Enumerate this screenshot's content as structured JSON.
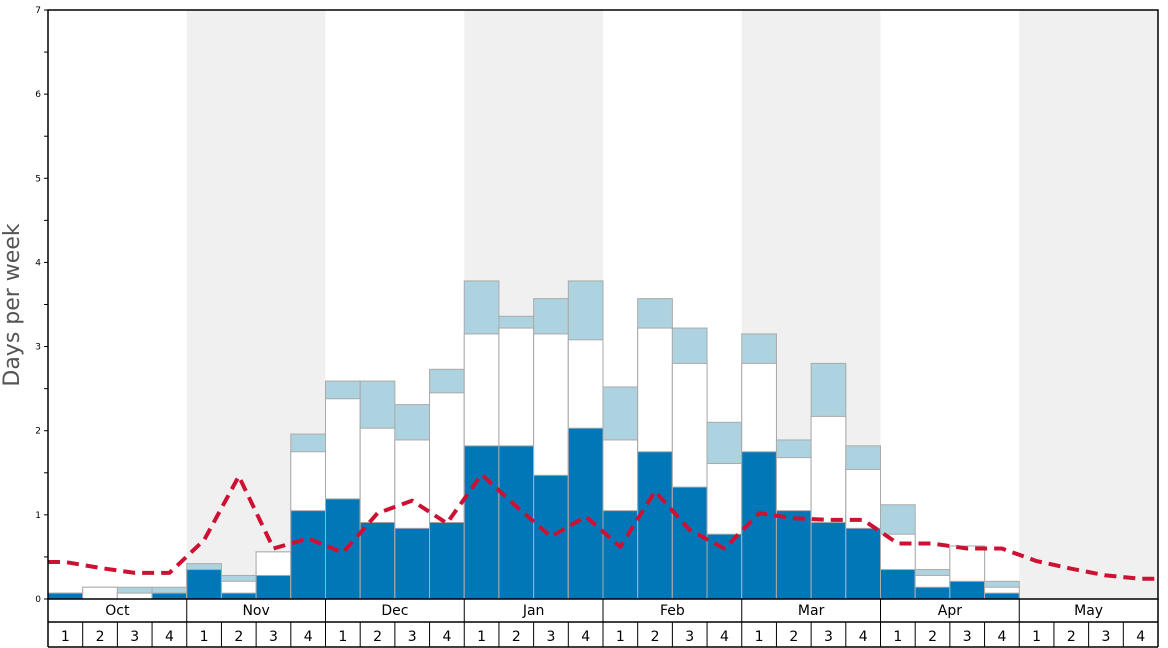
{
  "chart_data": {
    "type": "bar",
    "ylabel": "Days per week",
    "ylim": [
      0,
      7
    ],
    "y_ticks": [
      0,
      1,
      2,
      3,
      4,
      5,
      6,
      7
    ],
    "months": [
      "Oct",
      "Nov",
      "Dec",
      "Jan",
      "Feb",
      "Mar",
      "Apr",
      "May"
    ],
    "weeks": [
      "1",
      "2",
      "3",
      "4"
    ],
    "shaded_months": [
      "Nov",
      "Jan",
      "Mar",
      "May"
    ],
    "colors": {
      "dark": "#0277b8",
      "middle": "#ffffff",
      "light": "#aed3e0",
      "line": "#cc1133",
      "shade": "#f0f0f0",
      "bar_border": "#aaaaaa"
    },
    "series": [
      {
        "values": [
          0.07,
          0,
          0,
          0.07,
          0.35,
          0.07,
          0.28,
          1.05,
          1.19,
          0.91,
          0.84,
          0.91,
          1.82,
          1.82,
          1.47,
          2.03,
          1.05,
          1.75,
          1.33,
          0.77,
          1.75,
          1.05,
          0.91,
          0.84,
          0.35,
          0.14,
          0.21,
          0.07,
          null,
          null,
          null,
          null
        ]
      },
      {
        "values": [
          0.07,
          0.14,
          0.07,
          0.07,
          0.35,
          0.21,
          0.56,
          1.75,
          2.38,
          2.03,
          1.89,
          2.45,
          3.15,
          3.22,
          3.15,
          3.08,
          1.89,
          3.22,
          2.8,
          1.61,
          2.8,
          1.68,
          2.17,
          1.54,
          0.77,
          0.28,
          0.63,
          0.14,
          null,
          null,
          null,
          null
        ]
      },
      {
        "values": [
          0.07,
          0.14,
          0.14,
          0.14,
          0.42,
          0.28,
          0.56,
          1.96,
          2.59,
          2.59,
          2.31,
          2.73,
          3.78,
          3.36,
          3.57,
          3.78,
          2.52,
          3.57,
          3.22,
          2.1,
          3.15,
          1.89,
          2.8,
          1.82,
          1.12,
          0.35,
          0.63,
          0.21,
          null,
          null,
          null,
          null
        ]
      },
      {
        "values": [
          0.44,
          0.37,
          0.31,
          0.31,
          0.7,
          1.46,
          0.6,
          0.72,
          0.55,
          1.02,
          1.17,
          0.9,
          1.48,
          1.1,
          0.74,
          0.98,
          0.62,
          1.28,
          0.82,
          0.6,
          1.02,
          0.96,
          0.94,
          0.94,
          0.66,
          0.66,
          0.6,
          0.6,
          0.45,
          0.36,
          0.28,
          0.24
        ]
      }
    ]
  }
}
